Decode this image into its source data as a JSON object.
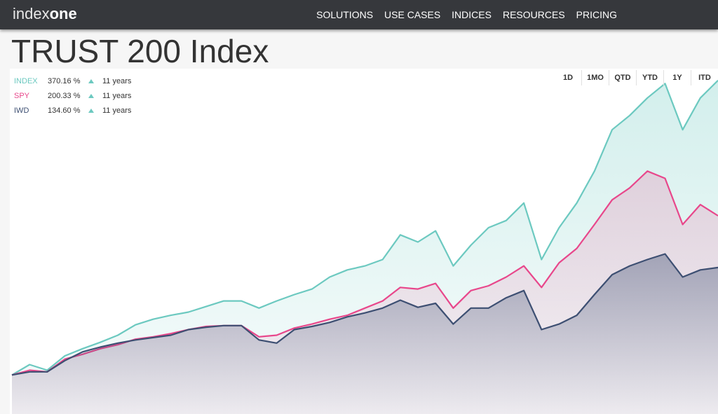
{
  "header": {
    "logo": {
      "part1": "index",
      "part2": "one"
    },
    "nav": [
      "SOLUTIONS",
      "USE CASES",
      "INDICES",
      "RESOURCES",
      "PRICING"
    ]
  },
  "page_title": "TRUST 200 Index",
  "ranges": [
    "1D",
    "1MO",
    "QTD",
    "YTD",
    "1Y",
    "ITD"
  ],
  "chart_data": {
    "type": "area",
    "ylim": [
      -49,
      383
    ],
    "series": [
      {
        "name": "INDEX",
        "color": "#6cc9c0",
        "change_label": "370.16 %",
        "period": "11 years",
        "values": [
          0,
          13,
          6,
          24,
          33,
          41,
          50,
          63,
          70,
          75,
          79,
          86,
          93,
          93,
          84,
          93,
          101,
          108,
          123,
          132,
          137,
          145,
          176,
          167,
          181,
          137,
          163,
          185,
          194,
          216,
          145,
          185,
          216,
          256,
          308,
          326,
          348,
          366,
          308,
          348,
          370
        ]
      },
      {
        "name": "SPY",
        "color": "#e8478b",
        "change_label": "200.33 %",
        "period": "11 years",
        "values": [
          0,
          6,
          4,
          20,
          26,
          33,
          38,
          45,
          48,
          52,
          57,
          61,
          62,
          62,
          48,
          50,
          59,
          64,
          70,
          75,
          84,
          93,
          110,
          108,
          115,
          84,
          106,
          112,
          123,
          137,
          110,
          141,
          159,
          189,
          220,
          235,
          256,
          247,
          189,
          214,
          200
        ]
      },
      {
        "name": "IWD",
        "color": "#3d4f72",
        "change_label": "134.60 %",
        "period": "11 years",
        "values": [
          0,
          4,
          4,
          18,
          29,
          35,
          40,
          44,
          47,
          50,
          57,
          60,
          62,
          62,
          44,
          40,
          57,
          61,
          66,
          73,
          78,
          84,
          94,
          85,
          90,
          64,
          84,
          84,
          97,
          106,
          57,
          64,
          75,
          101,
          126,
          137,
          145,
          152,
          123,
          132,
          135
        ]
      }
    ]
  }
}
